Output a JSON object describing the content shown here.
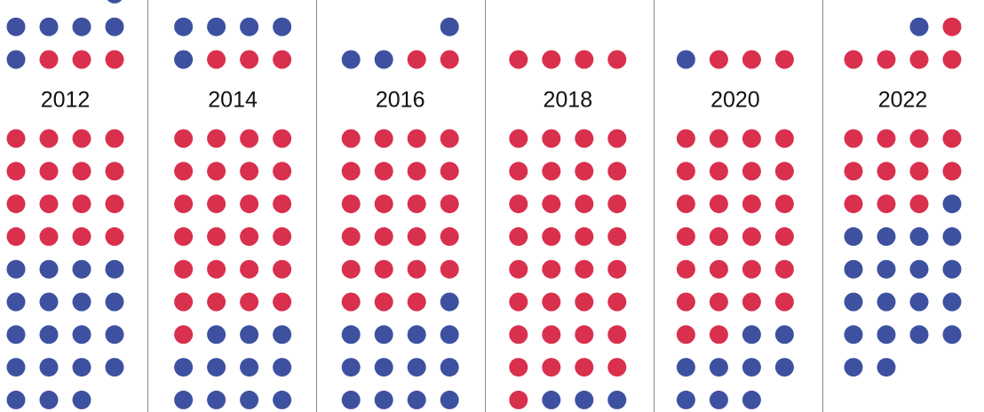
{
  "chart_data": {
    "type": "waffle",
    "colors": {
      "R": "#d9304e",
      "B": "#3d51a0"
    },
    "panels": [
      {
        "label": "2012",
        "top": [
          "...B",
          "BBBB",
          "BRRR"
        ],
        "bottom": [
          "RRRR",
          "RRRR",
          "RRRR",
          "RRRR",
          "BBBB",
          "BBBB",
          "BBBB",
          "BBBB",
          "BBB"
        ]
      },
      {
        "label": "2014",
        "top": [
          "BBBB",
          "BRRR"
        ],
        "bottom": [
          "RRRR",
          "RRRR",
          "RRRR",
          "RRRR",
          "RRRR",
          "RRRR",
          "RBBB",
          "BBBB",
          "BBBB"
        ]
      },
      {
        "label": "2016",
        "top": [
          "...B",
          "BBRR"
        ],
        "bottom": [
          "RRRR",
          "RRRR",
          "RRRR",
          "RRRR",
          "RRRR",
          "RRRB",
          "BBBB",
          "BBBB",
          "BBBB"
        ]
      },
      {
        "label": "2018",
        "top": [
          "RRRR"
        ],
        "bottom": [
          "RRRR",
          "RRRR",
          "RRRR",
          "RRRR",
          "RRRR",
          "RRRR",
          "RRRR",
          "RRRR",
          "RBBB"
        ]
      },
      {
        "label": "2020",
        "top": [
          "BRRR"
        ],
        "bottom": [
          "RRRR",
          "RRRR",
          "RRRR",
          "RRRR",
          "RRRR",
          "RRRR",
          "RRBB",
          "BBBB",
          "BBB"
        ]
      },
      {
        "label": "2022",
        "top": [
          "..BR",
          "RRRR"
        ],
        "bottom": [
          "RRRR",
          "RRRR",
          "RRRB",
          "BBBB",
          "BBBB",
          "BBBB",
          "BBBB",
          "BB"
        ]
      }
    ]
  }
}
